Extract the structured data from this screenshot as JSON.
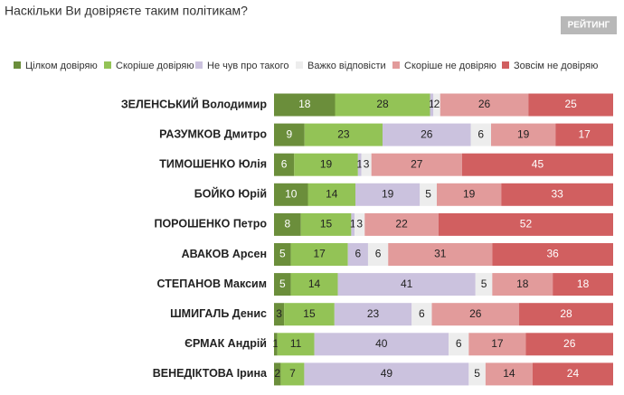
{
  "chart_data": {
    "type": "stacked-bar-horizontal",
    "title": "Наскільки Ви довіряєте таким політикам?",
    "logo": "РЕЙТИНГ",
    "categories": [
      "ЗЕЛЕНСЬКИЙ Володимир",
      "РАЗУМКОВ Дмитро",
      "ТИМОШЕНКО Юлія",
      "БОЙКО Юрій",
      "ПОРОШЕНКО Петро",
      "АВАКОВ Арсен",
      "СТЕПАНОВ Максим",
      "ШМИГАЛЬ Денис",
      "ЄРМАК Андрій",
      "ВЕНЕДІКТОВА Ірина"
    ],
    "series": [
      {
        "name": "Цілком довіряю",
        "color": "#6b8e3b",
        "values": [
          18,
          9,
          6,
          10,
          8,
          5,
          5,
          3,
          1,
          2
        ]
      },
      {
        "name": "Скоріше довіряю",
        "color": "#93c356",
        "values": [
          28,
          23,
          19,
          14,
          15,
          17,
          14,
          15,
          11,
          7
        ]
      },
      {
        "name": "Не чув про такого",
        "color": "#cbc2de",
        "values": [
          1,
          26,
          1,
          19,
          1,
          6,
          41,
          23,
          40,
          49
        ]
      },
      {
        "name": "Важко відповісти",
        "color": "#ededed",
        "values": [
          2,
          6,
          3,
          5,
          3,
          6,
          5,
          6,
          6,
          5
        ]
      },
      {
        "name": "Скоріше не довіряю",
        "color": "#e29b9b",
        "values": [
          26,
          19,
          27,
          19,
          22,
          31,
          18,
          26,
          17,
          14
        ]
      },
      {
        "name": "Зовсім не довіряю",
        "color": "#d15f60",
        "values": [
          25,
          17,
          45,
          33,
          52,
          36,
          18,
          28,
          26,
          24
        ]
      }
    ],
    "legend": "top"
  }
}
